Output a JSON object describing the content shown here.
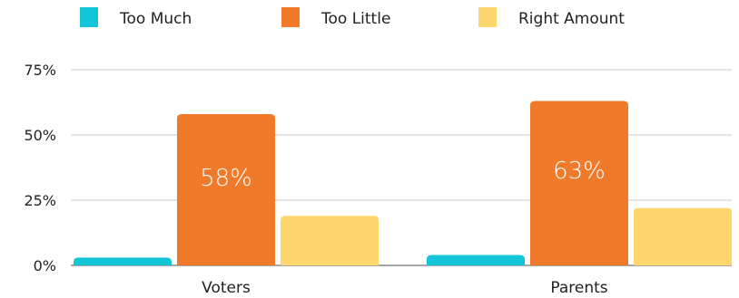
{
  "chart_data": {
    "type": "bar",
    "categories": [
      "Voters",
      "Parents"
    ],
    "series": [
      {
        "name": "Too Much",
        "color": "#12C6D8",
        "values": [
          3,
          4
        ]
      },
      {
        "name": "Too Little",
        "color": "#F07A2A",
        "values": [
          58,
          63
        ],
        "labels": [
          "58%",
          "63%"
        ]
      },
      {
        "name": "Right Amount",
        "color": "#FDD76E",
        "values": [
          19,
          22
        ]
      }
    ],
    "yticks": [
      "0%",
      "25%",
      "50%",
      "75%"
    ],
    "ytick_values": [
      0,
      25,
      50,
      75
    ],
    "ylim": [
      0,
      75
    ],
    "grid": true,
    "legend_position": "top"
  }
}
